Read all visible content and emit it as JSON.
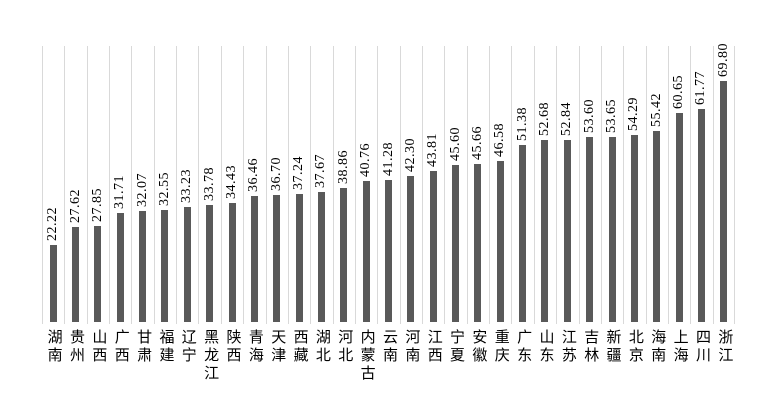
{
  "page": {
    "background_color": "#ffffff"
  },
  "chart_data": {
    "type": "bar",
    "title": "",
    "xlabel": "",
    "ylabel": "",
    "legend_position": "none",
    "grid": "vertical-category-separators",
    "ylim": [
      0,
      80
    ],
    "bar_color": "#595959",
    "gridline_color": "#d9d9d9",
    "text_color": "#000000",
    "value_label_rotation_degrees": 90,
    "category_label_layout": "vertical-stacked-characters",
    "categories": [
      "湖南",
      "贵州",
      "山西",
      "广西",
      "甘肃",
      "福建",
      "辽宁",
      "黑龙江",
      "陕西",
      "青海",
      "天津",
      "西藏",
      "湖北",
      "河北",
      "内蒙古",
      "云南",
      "河南",
      "江西",
      "宁夏",
      "安徽",
      "重庆",
      "广东",
      "山东",
      "江苏",
      "吉林",
      "新疆",
      "北京",
      "海南",
      "上海",
      "四川",
      "浙江"
    ],
    "values": [
      22.22,
      27.62,
      27.85,
      31.71,
      32.07,
      32.55,
      33.23,
      33.78,
      34.43,
      36.46,
      36.7,
      37.24,
      37.67,
      38.86,
      40.76,
      41.28,
      42.3,
      43.81,
      45.6,
      45.66,
      46.58,
      51.38,
      52.68,
      52.84,
      53.6,
      53.65,
      54.29,
      55.42,
      60.65,
      61.77,
      69.8
    ],
    "value_labels": [
      "22.22",
      "27.62",
      "27.85",
      "31.71",
      "32.07",
      "32.55",
      "33.23",
      "33.78",
      "34.43",
      "36.46",
      "36.70",
      "37.24",
      "37.67",
      "38.86",
      "40.76",
      "41.28",
      "42.30",
      "43.81",
      "45.60",
      "45.66",
      "46.58",
      "51.38",
      "52.68",
      "52.84",
      "53.60",
      "53.65",
      "54.29",
      "55.42",
      "60.65",
      "61.77",
      "69.80"
    ]
  }
}
